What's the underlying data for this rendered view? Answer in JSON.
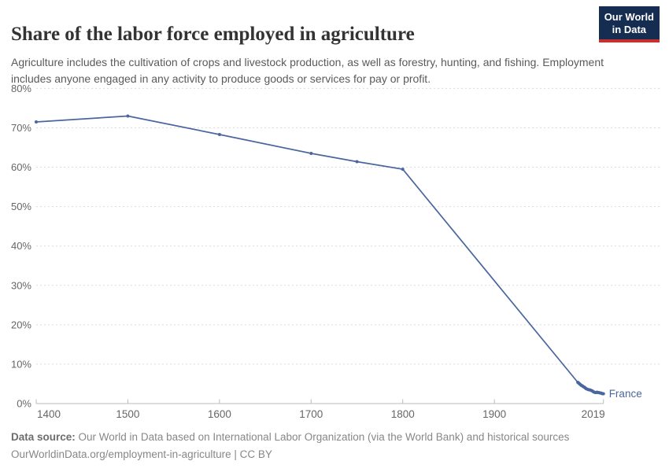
{
  "header": {
    "title": "Share of the labor force employed in agriculture",
    "subtitle": "Agriculture includes the cultivation of crops and livestock production, as well as forestry, hunting, and fishing. Employment includes anyone engaged in any activity to produce goods or services for pay or profit."
  },
  "logo": {
    "line1": "Our World",
    "line2": "in Data",
    "bg_color": "#142d50",
    "accent_color": "#c7302d"
  },
  "chart_data": {
    "type": "line",
    "title": "Share of the labor force employed in agriculture",
    "unit": "%",
    "grid": "dashed-horizontal",
    "legend": "entity-label-at-line-end",
    "x_axis": {
      "ticks": [
        1400,
        1500,
        1600,
        1700,
        1800,
        1900,
        2019
      ],
      "range": [
        1400,
        2019
      ]
    },
    "y_axis": {
      "range": [
        0,
        80
      ],
      "ticks": [
        {
          "value": 0,
          "label": "0%"
        },
        {
          "value": 10,
          "label": "10%"
        },
        {
          "value": 20,
          "label": "20%"
        },
        {
          "value": 30,
          "label": "30%"
        },
        {
          "value": 40,
          "label": "40%"
        },
        {
          "value": 50,
          "label": "50%"
        },
        {
          "value": 60,
          "label": "60%"
        },
        {
          "value": 70,
          "label": "70%"
        },
        {
          "value": 80,
          "label": "80%"
        }
      ]
    },
    "series": [
      {
        "name": "France",
        "color": "#4a669f",
        "points": [
          [
            1400,
            71.5
          ],
          [
            1500,
            73.0
          ],
          [
            1600,
            68.3
          ],
          [
            1700,
            63.5
          ],
          [
            1750,
            61.4
          ],
          [
            1800,
            59.5
          ],
          [
            1991,
            5.4
          ],
          [
            1992,
            5.2
          ],
          [
            1993,
            5.0
          ],
          [
            1994,
            4.8
          ],
          [
            1995,
            4.6
          ],
          [
            1996,
            4.5
          ],
          [
            1997,
            4.3
          ],
          [
            1998,
            4.2
          ],
          [
            1999,
            4.0
          ],
          [
            2000,
            3.8
          ],
          [
            2001,
            3.7
          ],
          [
            2002,
            3.6
          ],
          [
            2003,
            3.5
          ],
          [
            2004,
            3.5
          ],
          [
            2005,
            3.4
          ],
          [
            2006,
            3.3
          ],
          [
            2007,
            3.2
          ],
          [
            2008,
            3.0
          ],
          [
            2009,
            2.9
          ],
          [
            2010,
            2.8
          ],
          [
            2011,
            2.8
          ],
          [
            2012,
            2.9
          ],
          [
            2013,
            2.8
          ],
          [
            2014,
            2.8
          ],
          [
            2015,
            2.7
          ],
          [
            2016,
            2.7
          ],
          [
            2017,
            2.6
          ],
          [
            2018,
            2.5
          ],
          [
            2019,
            2.5
          ]
        ]
      }
    ]
  },
  "footer": {
    "datasource_label": "Data source:",
    "datasource_text": "Our World in Data based on International Labor Organization (via the World Bank) and historical sources",
    "note": "OurWorldinData.org/employment-in-agriculture | CC BY"
  }
}
